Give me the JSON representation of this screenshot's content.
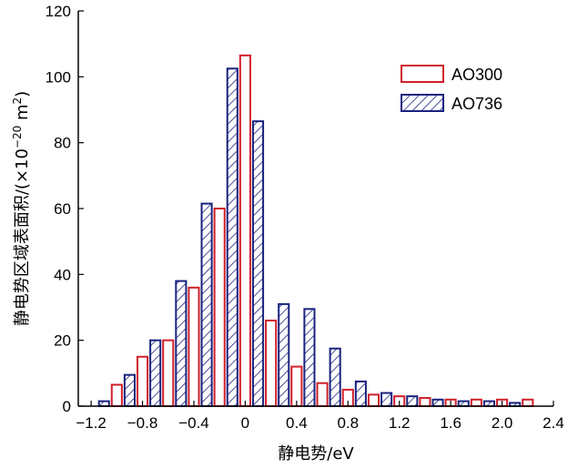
{
  "chart_data": {
    "type": "bar",
    "xlabel": "静电势/eV",
    "ylabel_main": "静电势区域表面积/(×10",
    "ylabel_exp": "−20",
    "ylabel_unit": " m",
    "ylabel_unit_exp": "2",
    "ylabel_close": ")",
    "xlim": [
      -1.3,
      2.4
    ],
    "ylim": [
      0,
      120
    ],
    "xticks": [
      -1.2,
      -0.8,
      -0.4,
      0,
      0.4,
      0.8,
      1.2,
      1.6,
      2.0,
      2.4
    ],
    "xtick_labels": [
      "−1.2",
      "−0.8",
      "−0.4",
      "0",
      "0.4",
      "0.8",
      "1.2",
      "1.6",
      "2.0",
      "2.4"
    ],
    "yticks": [
      0,
      20,
      40,
      60,
      80,
      100,
      120
    ],
    "ytick_labels": [
      "0",
      "20",
      "40",
      "60",
      "80",
      "100",
      "120"
    ],
    "legend_position": "top-right",
    "series": [
      {
        "name": "AO300",
        "color": "#d0202a",
        "style": "open",
        "x": [
          -1.0,
          -0.8,
          -0.6,
          -0.4,
          -0.2,
          0.0,
          0.2,
          0.4,
          0.6,
          0.8,
          1.0,
          1.2,
          1.4,
          1.6,
          1.8,
          2.0,
          2.2
        ],
        "values": [
          6.5,
          15,
          20,
          36,
          60,
          106.5,
          26,
          12,
          7,
          5,
          3.5,
          3,
          2.5,
          2,
          2,
          2,
          2
        ]
      },
      {
        "name": "AO736",
        "color": "#1a237e",
        "style": "hatched",
        "x": [
          -1.1,
          -0.9,
          -0.7,
          -0.5,
          -0.3,
          -0.1,
          0.1,
          0.3,
          0.5,
          0.7,
          0.9,
          1.1,
          1.3,
          1.5,
          1.7,
          1.9,
          2.1
        ],
        "values": [
          1.5,
          9.5,
          20,
          38,
          61.5,
          102.5,
          86.5,
          31,
          29.5,
          17.5,
          7.5,
          4,
          3,
          2,
          1.5,
          1.5,
          1
        ]
      }
    ]
  }
}
